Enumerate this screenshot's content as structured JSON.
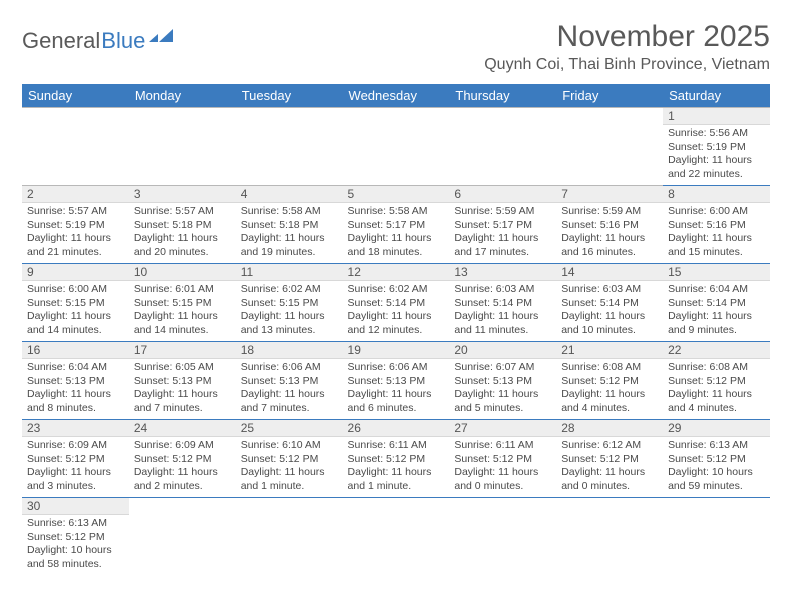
{
  "logo": {
    "text1": "General",
    "text2": "Blue"
  },
  "title": {
    "month": "November 2025",
    "location": "Quynh Coi, Thai Binh Province, Vietnam"
  },
  "colors": {
    "header_bg": "#3b7bbf",
    "rule": "#3b7bbf",
    "daynum_bg": "#eeeeee"
  },
  "weekdays": [
    "Sunday",
    "Monday",
    "Tuesday",
    "Wednesday",
    "Thursday",
    "Friday",
    "Saturday"
  ],
  "days": [
    {
      "n": 1,
      "sunrise": "5:56 AM",
      "sunset": "5:19 PM",
      "daylight": "11 hours and 22 minutes."
    },
    {
      "n": 2,
      "sunrise": "5:57 AM",
      "sunset": "5:19 PM",
      "daylight": "11 hours and 21 minutes."
    },
    {
      "n": 3,
      "sunrise": "5:57 AM",
      "sunset": "5:18 PM",
      "daylight": "11 hours and 20 minutes."
    },
    {
      "n": 4,
      "sunrise": "5:58 AM",
      "sunset": "5:18 PM",
      "daylight": "11 hours and 19 minutes."
    },
    {
      "n": 5,
      "sunrise": "5:58 AM",
      "sunset": "5:17 PM",
      "daylight": "11 hours and 18 minutes."
    },
    {
      "n": 6,
      "sunrise": "5:59 AM",
      "sunset": "5:17 PM",
      "daylight": "11 hours and 17 minutes."
    },
    {
      "n": 7,
      "sunrise": "5:59 AM",
      "sunset": "5:16 PM",
      "daylight": "11 hours and 16 minutes."
    },
    {
      "n": 8,
      "sunrise": "6:00 AM",
      "sunset": "5:16 PM",
      "daylight": "11 hours and 15 minutes."
    },
    {
      "n": 9,
      "sunrise": "6:00 AM",
      "sunset": "5:15 PM",
      "daylight": "11 hours and 14 minutes."
    },
    {
      "n": 10,
      "sunrise": "6:01 AM",
      "sunset": "5:15 PM",
      "daylight": "11 hours and 14 minutes."
    },
    {
      "n": 11,
      "sunrise": "6:02 AM",
      "sunset": "5:15 PM",
      "daylight": "11 hours and 13 minutes."
    },
    {
      "n": 12,
      "sunrise": "6:02 AM",
      "sunset": "5:14 PM",
      "daylight": "11 hours and 12 minutes."
    },
    {
      "n": 13,
      "sunrise": "6:03 AM",
      "sunset": "5:14 PM",
      "daylight": "11 hours and 11 minutes."
    },
    {
      "n": 14,
      "sunrise": "6:03 AM",
      "sunset": "5:14 PM",
      "daylight": "11 hours and 10 minutes."
    },
    {
      "n": 15,
      "sunrise": "6:04 AM",
      "sunset": "5:14 PM",
      "daylight": "11 hours and 9 minutes."
    },
    {
      "n": 16,
      "sunrise": "6:04 AM",
      "sunset": "5:13 PM",
      "daylight": "11 hours and 8 minutes."
    },
    {
      "n": 17,
      "sunrise": "6:05 AM",
      "sunset": "5:13 PM",
      "daylight": "11 hours and 7 minutes."
    },
    {
      "n": 18,
      "sunrise": "6:06 AM",
      "sunset": "5:13 PM",
      "daylight": "11 hours and 7 minutes."
    },
    {
      "n": 19,
      "sunrise": "6:06 AM",
      "sunset": "5:13 PM",
      "daylight": "11 hours and 6 minutes."
    },
    {
      "n": 20,
      "sunrise": "6:07 AM",
      "sunset": "5:13 PM",
      "daylight": "11 hours and 5 minutes."
    },
    {
      "n": 21,
      "sunrise": "6:08 AM",
      "sunset": "5:12 PM",
      "daylight": "11 hours and 4 minutes."
    },
    {
      "n": 22,
      "sunrise": "6:08 AM",
      "sunset": "5:12 PM",
      "daylight": "11 hours and 4 minutes."
    },
    {
      "n": 23,
      "sunrise": "6:09 AM",
      "sunset": "5:12 PM",
      "daylight": "11 hours and 3 minutes."
    },
    {
      "n": 24,
      "sunrise": "6:09 AM",
      "sunset": "5:12 PM",
      "daylight": "11 hours and 2 minutes."
    },
    {
      "n": 25,
      "sunrise": "6:10 AM",
      "sunset": "5:12 PM",
      "daylight": "11 hours and 1 minute."
    },
    {
      "n": 26,
      "sunrise": "6:11 AM",
      "sunset": "5:12 PM",
      "daylight": "11 hours and 1 minute."
    },
    {
      "n": 27,
      "sunrise": "6:11 AM",
      "sunset": "5:12 PM",
      "daylight": "11 hours and 0 minutes."
    },
    {
      "n": 28,
      "sunrise": "6:12 AM",
      "sunset": "5:12 PM",
      "daylight": "11 hours and 0 minutes."
    },
    {
      "n": 29,
      "sunrise": "6:13 AM",
      "sunset": "5:12 PM",
      "daylight": "10 hours and 59 minutes."
    },
    {
      "n": 30,
      "sunrise": "6:13 AM",
      "sunset": "5:12 PM",
      "daylight": "10 hours and 58 minutes."
    }
  ],
  "first_weekday_index": 6,
  "labels": {
    "sunrise": "Sunrise:",
    "sunset": "Sunset:",
    "daylight": "Daylight:"
  }
}
